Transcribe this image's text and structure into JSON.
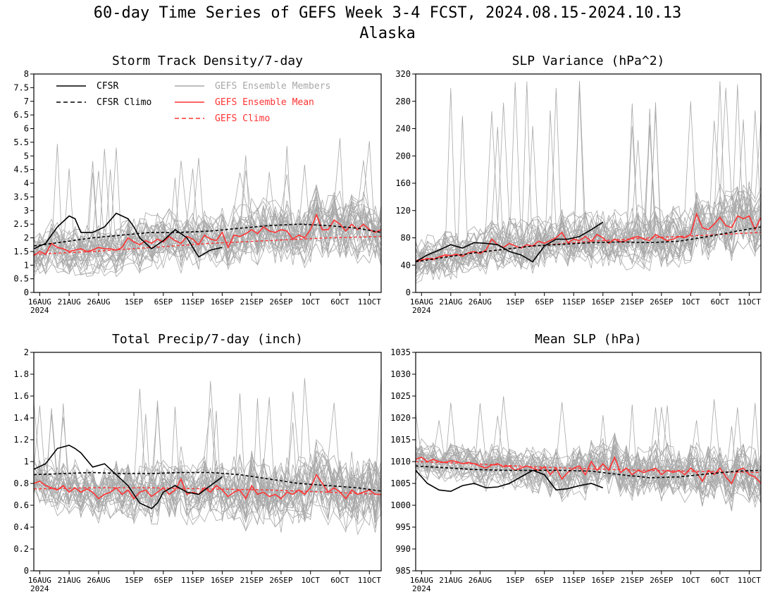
{
  "title": {
    "line1": "60-day Time Series of GEFS Week 3-4 FCST, 2024.08.15-2024.10.13",
    "line2": "Alaska"
  },
  "colors": {
    "cfsr": "#000000",
    "cfsr_climo": "#000000",
    "members": "#a8a8a8",
    "ens_mean": "#ff3333",
    "gefs_climo": "#ff3333"
  },
  "legend": [
    {
      "label": "CFSR",
      "style": "solid",
      "color": "#000000"
    },
    {
      "label": "CFSR Climo",
      "style": "dashed",
      "color": "#000000"
    },
    {
      "label": "GEFS Ensemble Members",
      "style": "solid",
      "color": "#a8a8a8"
    },
    {
      "label": "GEFS Ensemble Mean",
      "style": "solid",
      "color": "#ff3333"
    },
    {
      "label": "GEFS Climo",
      "style": "dashed",
      "color": "#ff3333"
    }
  ],
  "x_axis": {
    "tick_labels": [
      "16AUG",
      "21AUG",
      "26AUG",
      "1SEP",
      "6SEP",
      "11SEP",
      "16SEP",
      "21SEP",
      "26SEP",
      "1OCT",
      "6OCT",
      "11OCT"
    ],
    "tick_days": [
      1,
      6,
      11,
      17,
      22,
      27,
      32,
      37,
      42,
      47,
      52,
      57
    ],
    "year_label": "2024",
    "day_range": [
      0,
      59
    ]
  },
  "chart_data": [
    {
      "type": "line",
      "title": "Storm Track Density/7-day",
      "ylim": [
        0,
        8
      ],
      "yticks": [
        "0",
        "0.5",
        "1",
        "1.5",
        "2",
        "2.5",
        "3",
        "3.5",
        "4",
        "4.5",
        "5",
        "5.5",
        "6",
        "6.5",
        "7",
        "7.5",
        "8"
      ],
      "ytick_values": [
        0,
        0.5,
        1,
        1.5,
        2,
        2.5,
        3,
        3.5,
        4,
        4.5,
        5,
        5.5,
        6,
        6.5,
        7,
        7.5,
        8
      ],
      "has_legend": true,
      "member_spread": {
        "center": 2.0,
        "spread": 1.0,
        "spike_max": 5.7
      },
      "series": [
        {
          "name": "CFSR",
          "x": [
            0,
            2,
            4,
            6,
            7,
            8,
            10,
            12,
            14,
            16,
            17,
            18,
            20,
            22,
            24,
            26,
            28,
            30,
            32
          ],
          "y": [
            1.6,
            1.8,
            2.4,
            2.8,
            2.7,
            2.2,
            2.2,
            2.4,
            2.9,
            2.7,
            2.4,
            2.0,
            1.6,
            1.9,
            2.3,
            2.0,
            1.3,
            1.55,
            1.65
          ]
        },
        {
          "name": "CFSR Climo",
          "x": [
            0,
            5,
            10,
            15,
            20,
            25,
            30,
            35,
            40,
            45,
            50,
            55,
            59
          ],
          "y": [
            1.7,
            1.85,
            2.0,
            2.1,
            2.2,
            2.2,
            2.25,
            2.35,
            2.45,
            2.5,
            2.45,
            2.35,
            2.2
          ]
        },
        {
          "name": "GEFS Ensemble Mean",
          "x": [
            0,
            1,
            2,
            3,
            4,
            5,
            6,
            7,
            8,
            9,
            10,
            11,
            12,
            13,
            14,
            15,
            16,
            17,
            18,
            19,
            20,
            21,
            22,
            23,
            24,
            25,
            26,
            27,
            28,
            29,
            30,
            31,
            32,
            33,
            34,
            35,
            36,
            37,
            38,
            39,
            40,
            41,
            42,
            43,
            44,
            45,
            46,
            47,
            48,
            49,
            50,
            51,
            52,
            53,
            54,
            55,
            56,
            57,
            58,
            59
          ],
          "y": [
            1.35,
            1.5,
            1.4,
            1.8,
            1.65,
            1.6,
            1.5,
            1.55,
            1.6,
            1.5,
            1.55,
            1.65,
            1.6,
            1.6,
            1.55,
            1.65,
            2.0,
            1.85,
            1.75,
            1.9,
            1.8,
            1.95,
            1.85,
            2.05,
            1.9,
            1.8,
            2.05,
            1.95,
            1.75,
            2.1,
            1.95,
            1.9,
            2.2,
            1.65,
            2.1,
            2.05,
            2.15,
            2.3,
            2.15,
            2.4,
            2.25,
            2.2,
            2.3,
            2.25,
            1.95,
            2.1,
            2.0,
            2.3,
            2.85,
            2.3,
            2.3,
            2.65,
            2.5,
            2.25,
            2.5,
            2.3,
            2.5,
            2.3,
            2.2,
            2.3
          ]
        },
        {
          "name": "GEFS Climo",
          "x": [
            0,
            10,
            20,
            30,
            40,
            50,
            59
          ],
          "y": [
            1.4,
            1.5,
            1.65,
            1.8,
            1.9,
            2.0,
            2.05
          ]
        }
      ]
    },
    {
      "type": "line",
      "title": "SLP Variance (hPa^2)",
      "ylim": [
        0,
        320
      ],
      "yticks": [
        "0",
        "40",
        "80",
        "120",
        "160",
        "200",
        "240",
        "280",
        "320"
      ],
      "ytick_values": [
        0,
        40,
        80,
        120,
        160,
        200,
        240,
        280,
        320
      ],
      "has_legend": false,
      "member_spread": {
        "center": 70,
        "spread": 40,
        "spike_max": 315
      },
      "series": [
        {
          "name": "CFSR",
          "x": [
            0,
            2,
            4,
            6,
            8,
            10,
            12,
            14,
            16,
            18,
            20,
            22,
            24,
            26,
            28,
            30,
            32
          ],
          "y": [
            45,
            55,
            62,
            70,
            65,
            73,
            72,
            70,
            60,
            55,
            45,
            68,
            78,
            78,
            82,
            92,
            103
          ]
        },
        {
          "name": "CFSR Climo",
          "x": [
            0,
            10,
            20,
            30,
            35,
            40,
            45,
            50,
            55,
            59
          ],
          "y": [
            45,
            58,
            68,
            73,
            74,
            73,
            75,
            82,
            90,
            96
          ]
        },
        {
          "name": "GEFS Ensemble Mean",
          "x": [
            0,
            1,
            2,
            3,
            4,
            5,
            6,
            7,
            8,
            9,
            10,
            11,
            12,
            13,
            14,
            15,
            16,
            17,
            18,
            19,
            20,
            21,
            22,
            23,
            24,
            25,
            26,
            27,
            28,
            29,
            30,
            31,
            32,
            33,
            34,
            35,
            36,
            37,
            38,
            39,
            40,
            41,
            42,
            43,
            44,
            45,
            46,
            47,
            48,
            49,
            50,
            51,
            52,
            53,
            54,
            55,
            56,
            57,
            58,
            59
          ],
          "y": [
            45,
            47,
            50,
            48,
            52,
            55,
            54,
            56,
            53,
            58,
            60,
            57,
            62,
            78,
            70,
            66,
            72,
            68,
            65,
            70,
            68,
            75,
            72,
            76,
            80,
            88,
            73,
            78,
            76,
            82,
            75,
            85,
            80,
            72,
            78,
            74,
            76,
            80,
            82,
            78,
            76,
            85,
            80,
            76,
            78,
            82,
            80,
            85,
            115,
            95,
            92,
            100,
            110,
            98,
            95,
            112,
            108,
            112,
            92,
            110
          ]
        },
        {
          "name": "GEFS Climo",
          "x": [
            0,
            10,
            20,
            30,
            40,
            50,
            59
          ],
          "y": [
            47,
            58,
            68,
            75,
            80,
            84,
            88
          ]
        }
      ]
    },
    {
      "type": "line",
      "title": "Total Precip/7-day (inch)",
      "ylim": [
        0,
        2
      ],
      "yticks": [
        "0",
        "0.2",
        "0.4",
        "0.6",
        "0.8",
        "1",
        "1.2",
        "1.4",
        "1.6",
        "1.8",
        "2"
      ],
      "ytick_values": [
        0,
        0.2,
        0.4,
        0.6,
        0.8,
        1,
        1.2,
        1.4,
        1.6,
        1.8,
        2
      ],
      "has_legend": false,
      "member_spread": {
        "center": 0.75,
        "spread": 0.28,
        "spike_max": 1.78
      },
      "series": [
        {
          "name": "CFSR",
          "x": [
            0,
            2,
            4,
            6,
            7,
            8,
            10,
            12,
            14,
            16,
            18,
            20,
            21,
            22,
            24,
            26,
            28,
            30,
            32
          ],
          "y": [
            0.93,
            0.98,
            1.12,
            1.15,
            1.12,
            1.08,
            0.95,
            0.98,
            0.88,
            0.78,
            0.62,
            0.57,
            0.62,
            0.72,
            0.78,
            0.72,
            0.7,
            0.78,
            0.86
          ]
        },
        {
          "name": "CFSR Climo",
          "x": [
            0,
            5,
            10,
            15,
            20,
            25,
            30,
            35,
            40,
            45,
            50,
            55,
            59
          ],
          "y": [
            0.88,
            0.89,
            0.9,
            0.89,
            0.89,
            0.9,
            0.9,
            0.88,
            0.84,
            0.8,
            0.78,
            0.76,
            0.73
          ]
        },
        {
          "name": "GEFS Ensemble Mean",
          "x": [
            0,
            1,
            2,
            3,
            4,
            5,
            6,
            7,
            8,
            9,
            10,
            11,
            12,
            13,
            14,
            15,
            16,
            17,
            18,
            19,
            20,
            21,
            22,
            23,
            24,
            25,
            26,
            27,
            28,
            29,
            30,
            31,
            32,
            33,
            34,
            35,
            36,
            37,
            38,
            39,
            40,
            41,
            42,
            43,
            44,
            45,
            46,
            47,
            48,
            49,
            50,
            51,
            52,
            53,
            54,
            55,
            56,
            57,
            58,
            59
          ],
          "y": [
            0.8,
            0.82,
            0.78,
            0.76,
            0.74,
            0.78,
            0.72,
            0.76,
            0.72,
            0.75,
            0.72,
            0.66,
            0.7,
            0.72,
            0.76,
            0.7,
            0.74,
            0.66,
            0.72,
            0.74,
            0.68,
            0.72,
            0.76,
            0.7,
            0.74,
            0.84,
            0.7,
            0.72,
            0.7,
            0.76,
            0.72,
            0.78,
            0.74,
            0.68,
            0.72,
            0.74,
            0.66,
            0.78,
            0.7,
            0.72,
            0.68,
            0.7,
            0.66,
            0.72,
            0.7,
            0.74,
            0.7,
            0.76,
            0.88,
            0.8,
            0.72,
            0.76,
            0.72,
            0.66,
            0.74,
            0.7,
            0.72,
            0.74,
            0.7,
            0.7
          ]
        },
        {
          "name": "GEFS Climo",
          "x": [
            0,
            10,
            20,
            30,
            40,
            50,
            59
          ],
          "y": [
            0.75,
            0.76,
            0.76,
            0.75,
            0.74,
            0.72,
            0.7
          ]
        }
      ]
    },
    {
      "type": "line",
      "title": "Mean SLP (hPa)",
      "ylim": [
        985,
        1035
      ],
      "yticks": [
        "985",
        "990",
        "995",
        "1000",
        "1005",
        "1010",
        "1015",
        "1020",
        "1025",
        "1030",
        "1035"
      ],
      "ytick_values": [
        985,
        990,
        995,
        1000,
        1005,
        1010,
        1015,
        1020,
        1025,
        1030,
        1035
      ],
      "has_legend": false,
      "member_spread": {
        "center": 1007,
        "spread": 5.5,
        "spike_max": 1025
      },
      "series": [
        {
          "name": "CFSR",
          "x": [
            0,
            2,
            4,
            6,
            8,
            10,
            12,
            14,
            16,
            18,
            20,
            22,
            24,
            26,
            28,
            30,
            32
          ],
          "y": [
            1008,
            1005,
            1003.5,
            1003.2,
            1004.5,
            1005,
            1004,
            1004.2,
            1005,
            1006.5,
            1008,
            1007,
            1003.5,
            1003.8,
            1004.5,
            1005,
            1004
          ]
        },
        {
          "name": "CFSR Climo",
          "x": [
            0,
            5,
            10,
            15,
            20,
            25,
            30,
            35,
            40,
            45,
            50,
            55,
            59
          ],
          "y": [
            1009,
            1008.6,
            1008.2,
            1008,
            1008,
            1008,
            1007.8,
            1007,
            1006.3,
            1006.5,
            1007.2,
            1007.8,
            1008
          ]
        },
        {
          "name": "GEFS Ensemble Mean",
          "x": [
            0,
            1,
            2,
            3,
            4,
            5,
            6,
            7,
            8,
            9,
            10,
            11,
            12,
            13,
            14,
            15,
            16,
            17,
            18,
            19,
            20,
            21,
            22,
            23,
            24,
            25,
            26,
            27,
            28,
            29,
            30,
            31,
            32,
            33,
            34,
            35,
            36,
            37,
            38,
            39,
            40,
            41,
            42,
            43,
            44,
            45,
            46,
            47,
            48,
            49,
            50,
            51,
            52,
            53,
            54,
            55,
            56,
            57,
            58,
            59
          ],
          "y": [
            1010.5,
            1011,
            1010,
            1010.5,
            1010,
            1009.8,
            1010.2,
            1010,
            1009.5,
            1009.8,
            1009.5,
            1009,
            1008.5,
            1009.2,
            1009.5,
            1008.8,
            1009,
            1008,
            1008.5,
            1009,
            1008.5,
            1008,
            1008.8,
            1007,
            1008.5,
            1006,
            1007.5,
            1008.5,
            1009,
            1007,
            1010,
            1008,
            1009.5,
            1008,
            1011,
            1007.5,
            1008.5,
            1007,
            1008,
            1007.5,
            1008,
            1008.5,
            1007,
            1008,
            1007.5,
            1008,
            1007,
            1008.5,
            1007.5,
            1005.5,
            1008,
            1007,
            1008.5,
            1006.5,
            1005,
            1008,
            1008.5,
            1007,
            1006.5,
            1005
          ]
        },
        {
          "name": "GEFS Climo",
          "x": [
            0,
            10,
            20,
            30,
            40,
            50,
            59
          ],
          "y": [
            1010,
            1009.5,
            1008.8,
            1008.3,
            1008,
            1007.7,
            1007.5
          ]
        }
      ]
    }
  ]
}
